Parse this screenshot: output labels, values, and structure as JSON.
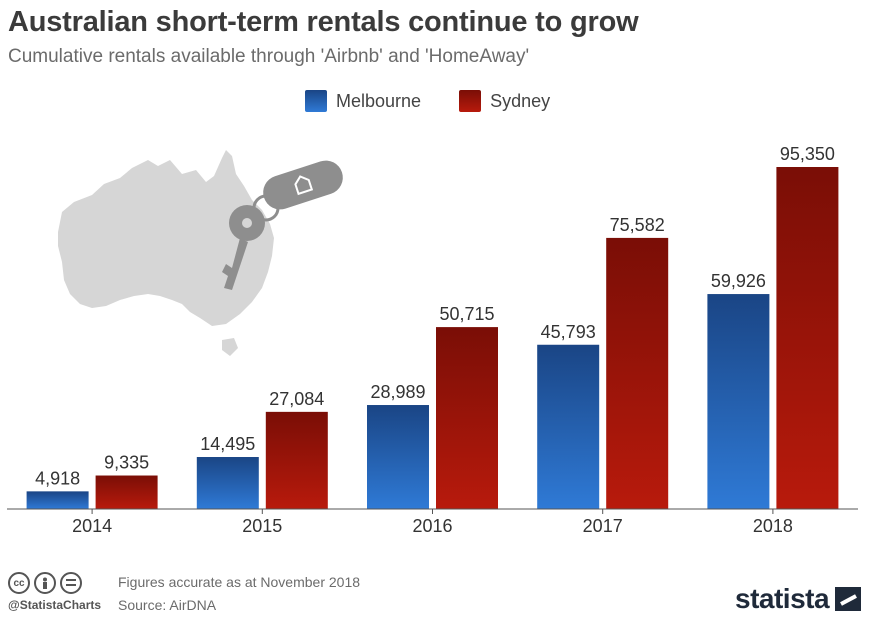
{
  "header": {
    "title": "Australian short-term rentals continue to grow",
    "subtitle": "Cumulative rentals available through 'Airbnb' and 'HomeAway'"
  },
  "colors": {
    "melbourne_top": "#1a4585",
    "melbourne_bottom": "#2f7ad6",
    "sydney_top": "#7a0e06",
    "sydney_bottom": "#b81a0c",
    "map": "#d6d6d6",
    "key": "#8e8e8e"
  },
  "icons": [
    "australia-map-icon",
    "car-key-icon",
    "house-keychain-icon",
    "cc-icon",
    "person-icon",
    "equals-icon"
  ],
  "chart_data": {
    "type": "bar",
    "categories": [
      "2014",
      "2015",
      "2016",
      "2017",
      "2018"
    ],
    "series": [
      {
        "name": "Melbourne",
        "values": [
          4918,
          14495,
          28989,
          45793,
          59926
        ],
        "labels": [
          "4,918",
          "14,495",
          "28,989",
          "45,793",
          "59,926"
        ]
      },
      {
        "name": "Sydney",
        "values": [
          9335,
          27084,
          50715,
          75582,
          95350
        ],
        "labels": [
          "9,335",
          "27,084",
          "50,715",
          "75,582",
          "95,350"
        ]
      }
    ],
    "ylim": [
      0,
      100000
    ],
    "grid": false,
    "legend_position": "top"
  },
  "footer": {
    "handle": "@StatistaCharts",
    "note_line1": "Figures accurate as at November 2018",
    "note_line2": "Source: AirDNA",
    "brand": "statista"
  }
}
